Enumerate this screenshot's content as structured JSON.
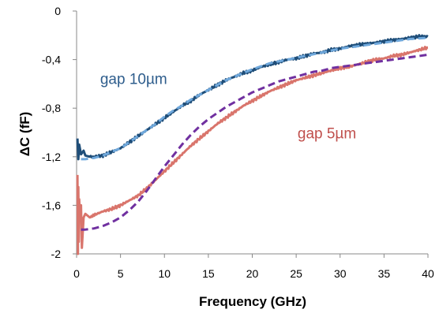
{
  "chart_data": {
    "type": "line",
    "xlabel": "Frequency (GHz)",
    "ylabel": "ΔC  (fF)",
    "xlim": [
      0,
      40
    ],
    "ylim": [
      -2,
      0
    ],
    "xticks": [
      0,
      5,
      10,
      15,
      20,
      25,
      30,
      35,
      40
    ],
    "xtick_labels": [
      "0",
      "5",
      "10",
      "15",
      "20",
      "25",
      "30",
      "35",
      "40"
    ],
    "yticks": [
      0,
      -0.4,
      -0.8,
      -1.2,
      -1.6,
      -2
    ],
    "ytick_labels": [
      "0",
      "-0,4",
      "-0,8",
      "-1,2",
      "-1,6",
      "-2"
    ],
    "grid": false,
    "annotations": [
      {
        "text": "gap 10µm",
        "x": 6.5,
        "y": -0.6,
        "color": "#2e5d8c"
      },
      {
        "text": "gap 5µm",
        "x": 28.5,
        "y": -1.05,
        "color": "#c0504d"
      }
    ],
    "series": [
      {
        "style": "solid-noisy",
        "color": "#1f4e79",
        "x": [
          0.1,
          0.2,
          0.3,
          0.5,
          0.8,
          1.0,
          1.5,
          2,
          3,
          4,
          5,
          6,
          7,
          8,
          9,
          10,
          11,
          12,
          13,
          14,
          15,
          16,
          17,
          18,
          19,
          20,
          21,
          22,
          23,
          24,
          25,
          26,
          27,
          28,
          29,
          30,
          31,
          32,
          33,
          34,
          35,
          36,
          37,
          38,
          39,
          40
        ],
        "y": [
          -1.05,
          -1.22,
          -1.1,
          -1.18,
          -1.15,
          -1.19,
          -1.2,
          -1.2,
          -1.19,
          -1.16,
          -1.13,
          -1.08,
          -1.03,
          -0.98,
          -0.93,
          -0.88,
          -0.83,
          -0.78,
          -0.74,
          -0.69,
          -0.65,
          -0.61,
          -0.57,
          -0.54,
          -0.51,
          -0.49,
          -0.46,
          -0.44,
          -0.42,
          -0.4,
          -0.39,
          -0.37,
          -0.35,
          -0.34,
          -0.32,
          -0.31,
          -0.29,
          -0.28,
          -0.27,
          -0.26,
          -0.25,
          -0.24,
          -0.23,
          -0.22,
          -0.21,
          -0.21
        ]
      },
      {
        "style": "dashed",
        "color": "#6fa8dc",
        "x": [
          0.5,
          1,
          2,
          3,
          4,
          5,
          6,
          7,
          8,
          9,
          10,
          11,
          12,
          13,
          14,
          15,
          16,
          17,
          18,
          19,
          20,
          22,
          24,
          26,
          28,
          30,
          32,
          34,
          36,
          38,
          40
        ],
        "y": [
          -1.22,
          -1.22,
          -1.21,
          -1.19,
          -1.16,
          -1.13,
          -1.08,
          -1.03,
          -0.98,
          -0.93,
          -0.87,
          -0.82,
          -0.78,
          -0.73,
          -0.69,
          -0.65,
          -0.61,
          -0.57,
          -0.54,
          -0.51,
          -0.48,
          -0.43,
          -0.4,
          -0.37,
          -0.34,
          -0.31,
          -0.29,
          -0.27,
          -0.25,
          -0.23,
          -0.22
        ]
      },
      {
        "style": "solid-noisy",
        "color": "#d9756c",
        "x": [
          0.1,
          0.15,
          0.2,
          0.25,
          0.3,
          0.4,
          0.5,
          0.6,
          0.8,
          1.0,
          1.5,
          2,
          3,
          4,
          5,
          6,
          7,
          8,
          9,
          10,
          11,
          12,
          13,
          14,
          15,
          16,
          17,
          18,
          19,
          20,
          21,
          22,
          23,
          24,
          25,
          26,
          27,
          28,
          29,
          30,
          31,
          32,
          33,
          34,
          35,
          36,
          37,
          38,
          39,
          40
        ],
        "y": [
          -1.35,
          -2.0,
          -1.45,
          -1.9,
          -1.55,
          -1.72,
          -1.6,
          -1.95,
          -1.7,
          -1.67,
          -1.7,
          -1.68,
          -1.65,
          -1.63,
          -1.6,
          -1.56,
          -1.52,
          -1.46,
          -1.39,
          -1.32,
          -1.25,
          -1.18,
          -1.11,
          -1.05,
          -0.99,
          -0.93,
          -0.88,
          -0.83,
          -0.78,
          -0.74,
          -0.7,
          -0.66,
          -0.63,
          -0.6,
          -0.57,
          -0.55,
          -0.53,
          -0.51,
          -0.49,
          -0.47,
          -0.46,
          -0.44,
          -0.42,
          -0.4,
          -0.39,
          -0.37,
          -0.36,
          -0.34,
          -0.32,
          -0.3
        ]
      },
      {
        "style": "dashed",
        "color": "#7030a0",
        "x": [
          0.5,
          1,
          2,
          3,
          4,
          5,
          6,
          7,
          8,
          9,
          10,
          11,
          12,
          13,
          14,
          15,
          16,
          17,
          18,
          19,
          20,
          21,
          22,
          23,
          24,
          25,
          26,
          27,
          28,
          29,
          30,
          31,
          32,
          33,
          34,
          35,
          36,
          37,
          38,
          39,
          40
        ],
        "y": [
          -1.8,
          -1.8,
          -1.79,
          -1.77,
          -1.74,
          -1.7,
          -1.64,
          -1.57,
          -1.48,
          -1.38,
          -1.28,
          -1.19,
          -1.1,
          -1.02,
          -0.95,
          -0.89,
          -0.84,
          -0.79,
          -0.75,
          -0.71,
          -0.67,
          -0.64,
          -0.61,
          -0.58,
          -0.56,
          -0.54,
          -0.52,
          -0.5,
          -0.49,
          -0.47,
          -0.46,
          -0.45,
          -0.44,
          -0.43,
          -0.42,
          -0.41,
          -0.4,
          -0.39,
          -0.38,
          -0.37,
          -0.36
        ]
      }
    ]
  }
}
